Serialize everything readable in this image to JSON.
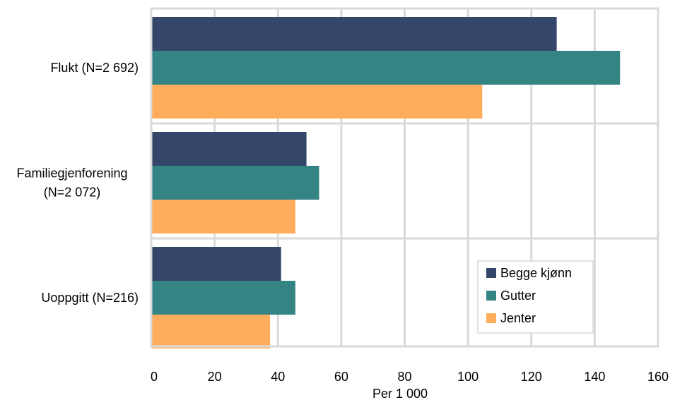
{
  "chart_data": {
    "type": "bar",
    "orientation": "horizontal",
    "categories": [
      [
        "Flukt (N=2 692)"
      ],
      [
        "Familiegjenforening",
        "(N=2 072)"
      ],
      [
        "Uoppgitt (N=216)"
      ]
    ],
    "series": [
      {
        "name": "Begge kjønn",
        "color": "#34466a",
        "values": [
          128,
          49,
          41
        ]
      },
      {
        "name": "Gutter",
        "color": "#348484",
        "values": [
          148,
          53,
          45.5
        ]
      },
      {
        "name": "Jenter",
        "color": "#ffad5c",
        "values": [
          104.5,
          45.5,
          37.5
        ]
      }
    ],
    "xlabel": "Per 1 000",
    "xlim": [
      0,
      160
    ],
    "xticks": [
      0,
      20,
      40,
      60,
      80,
      100,
      120,
      140,
      160
    ],
    "grid": true,
    "legend_position": "bottom-right"
  }
}
